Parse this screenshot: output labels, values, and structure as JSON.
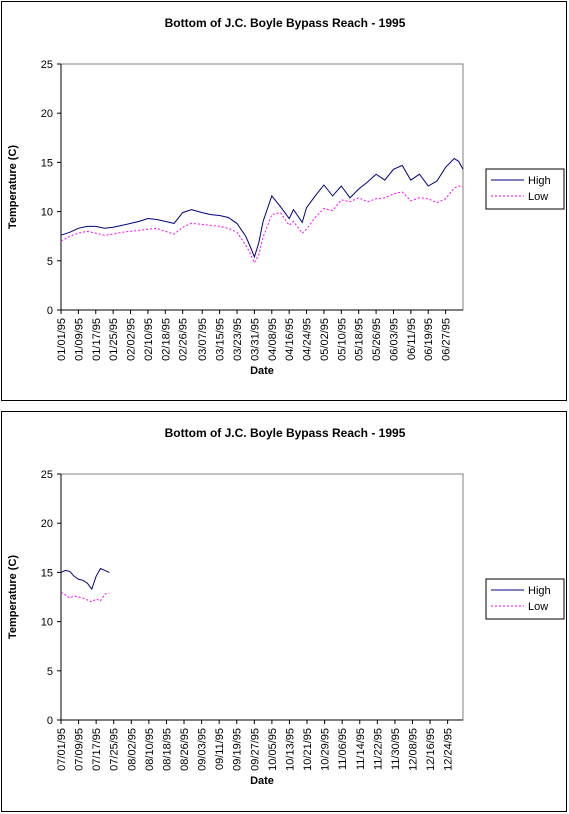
{
  "chart_data": [
    {
      "type": "line",
      "title": "Bottom of J.C. Boyle Bypass Reach - 1995",
      "xlabel": "Date",
      "ylabel": "Temperature (C)",
      "ylim": [
        0,
        25
      ],
      "yticks": [
        "0",
        "5",
        "10",
        "15",
        "20",
        "25"
      ],
      "xlim": [
        "01/01/95",
        "07/05/95"
      ],
      "xticks": [
        "01/01/95",
        "01/09/95",
        "01/17/95",
        "01/25/95",
        "02/02/95",
        "02/10/95",
        "02/18/95",
        "02/26/95",
        "03/07/95",
        "03/15/95",
        "03/23/95",
        "03/31/95",
        "04/08/95",
        "04/16/95",
        "04/24/95",
        "05/02/95",
        "05/10/95",
        "05/18/95",
        "05/26/95",
        "06/03/95",
        "06/11/95",
        "06/19/95",
        "06/27/95"
      ],
      "legend": "right",
      "grid": false,
      "series": [
        {
          "name": "High",
          "color": "#000080",
          "style": "solid",
          "points": [
            [
              "01/01/95",
              7.6
            ],
            [
              "01/05/95",
              7.9
            ],
            [
              "01/09/95",
              8.3
            ],
            [
              "01/13/95",
              8.5
            ],
            [
              "01/17/95",
              8.5
            ],
            [
              "01/21/95",
              8.3
            ],
            [
              "01/25/95",
              8.4
            ],
            [
              "01/29/95",
              8.6
            ],
            [
              "02/02/95",
              8.8
            ],
            [
              "02/06/95",
              9.0
            ],
            [
              "02/10/95",
              9.3
            ],
            [
              "02/14/95",
              9.2
            ],
            [
              "02/18/95",
              9.0
            ],
            [
              "02/22/95",
              8.8
            ],
            [
              "02/26/95",
              9.9
            ],
            [
              "03/02/95",
              10.2
            ],
            [
              "03/07/95",
              9.9
            ],
            [
              "03/11/95",
              9.7
            ],
            [
              "03/15/95",
              9.6
            ],
            [
              "03/19/95",
              9.4
            ],
            [
              "03/23/95",
              8.8
            ],
            [
              "03/27/95",
              7.5
            ],
            [
              "03/29/95",
              6.5
            ],
            [
              "03/31/95",
              5.4
            ],
            [
              "04/02/95",
              6.8
            ],
            [
              "04/04/95",
              9.0
            ],
            [
              "04/08/95",
              11.6
            ],
            [
              "04/12/95",
              10.5
            ],
            [
              "04/16/95",
              9.3
            ],
            [
              "04/18/95",
              10.2
            ],
            [
              "04/22/95",
              8.9
            ],
            [
              "04/24/95",
              10.4
            ],
            [
              "04/28/95",
              11.6
            ],
            [
              "05/02/95",
              12.7
            ],
            [
              "05/06/95",
              11.6
            ],
            [
              "05/10/95",
              12.6
            ],
            [
              "05/14/95",
              11.4
            ],
            [
              "05/18/95",
              12.3
            ],
            [
              "05/22/95",
              13.0
            ],
            [
              "05/26/95",
              13.8
            ],
            [
              "05/30/95",
              13.2
            ],
            [
              "06/03/95",
              14.3
            ],
            [
              "06/07/95",
              14.7
            ],
            [
              "06/11/95",
              13.2
            ],
            [
              "06/15/95",
              13.8
            ],
            [
              "06/19/95",
              12.6
            ],
            [
              "06/23/95",
              13.1
            ],
            [
              "06/27/95",
              14.5
            ],
            [
              "07/01/95",
              15.4
            ],
            [
              "07/03/95",
              15.1
            ],
            [
              "07/05/95",
              14.3
            ]
          ]
        },
        {
          "name": "Low",
          "color": "#ff00ff",
          "style": "dotted",
          "points": [
            [
              "01/01/95",
              7.0
            ],
            [
              "01/05/95",
              7.5
            ],
            [
              "01/09/95",
              7.8
            ],
            [
              "01/13/95",
              8.0
            ],
            [
              "01/17/95",
              7.8
            ],
            [
              "01/21/95",
              7.6
            ],
            [
              "01/25/95",
              7.7
            ],
            [
              "01/29/95",
              7.9
            ],
            [
              "02/02/95",
              8.0
            ],
            [
              "02/06/95",
              8.1
            ],
            [
              "02/10/95",
              8.2
            ],
            [
              "02/14/95",
              8.3
            ],
            [
              "02/18/95",
              8.0
            ],
            [
              "02/22/95",
              7.7
            ],
            [
              "02/26/95",
              8.4
            ],
            [
              "03/02/95",
              8.8
            ],
            [
              "03/07/95",
              8.7
            ],
            [
              "03/11/95",
              8.6
            ],
            [
              "03/15/95",
              8.5
            ],
            [
              "03/19/95",
              8.3
            ],
            [
              "03/23/95",
              7.9
            ],
            [
              "03/27/95",
              6.6
            ],
            [
              "03/29/95",
              5.8
            ],
            [
              "03/31/95",
              4.8
            ],
            [
              "04/02/95",
              5.6
            ],
            [
              "04/04/95",
              7.4
            ],
            [
              "04/08/95",
              9.7
            ],
            [
              "04/12/95",
              9.9
            ],
            [
              "04/16/95",
              8.6
            ],
            [
              "04/18/95",
              9.0
            ],
            [
              "04/22/95",
              7.8
            ],
            [
              "04/24/95",
              8.2
            ],
            [
              "04/28/95",
              9.4
            ],
            [
              "05/02/95",
              10.3
            ],
            [
              "05/06/95",
              10.1
            ],
            [
              "05/10/95",
              11.2
            ],
            [
              "05/14/95",
              11.0
            ],
            [
              "05/18/95",
              11.4
            ],
            [
              "05/22/95",
              11.0
            ],
            [
              "05/26/95",
              11.3
            ],
            [
              "05/30/95",
              11.4
            ],
            [
              "06/03/95",
              11.8
            ],
            [
              "06/07/95",
              12.0
            ],
            [
              "06/11/95",
              11.1
            ],
            [
              "06/15/95",
              11.4
            ],
            [
              "06/19/95",
              11.3
            ],
            [
              "06/23/95",
              10.9
            ],
            [
              "06/27/95",
              11.3
            ],
            [
              "07/01/95",
              12.4
            ],
            [
              "07/03/95",
              12.6
            ],
            [
              "07/05/95",
              12.5
            ]
          ]
        }
      ]
    },
    {
      "type": "line",
      "title": "Bottom of J.C. Boyle Bypass Reach - 1995",
      "xlabel": "Date",
      "ylabel": "Temperature (C)",
      "ylim": [
        0,
        25
      ],
      "yticks": [
        "0",
        "5",
        "10",
        "15",
        "20",
        "25"
      ],
      "xlim": [
        "07/01/95",
        "12/31/95"
      ],
      "xticks": [
        "07/01/95",
        "07/09/95",
        "07/17/95",
        "07/25/95",
        "08/02/95",
        "08/10/95",
        "08/18/95",
        "08/26/95",
        "09/03/95",
        "09/11/95",
        "09/19/95",
        "09/27/95",
        "10/05/95",
        "10/13/95",
        "10/21/95",
        "10/29/95",
        "11/06/95",
        "11/14/95",
        "11/22/95",
        "11/30/95",
        "12/08/95",
        "12/16/95",
        "12/24/95"
      ],
      "legend": "right",
      "grid": false,
      "series": [
        {
          "name": "High",
          "color": "#000080",
          "style": "solid",
          "points": [
            [
              "07/01/95",
              15.0
            ],
            [
              "07/03/95",
              15.2
            ],
            [
              "07/05/95",
              15.1
            ],
            [
              "07/07/95",
              14.6
            ],
            [
              "07/09/95",
              14.3
            ],
            [
              "07/11/95",
              14.2
            ],
            [
              "07/13/95",
              13.9
            ],
            [
              "07/15/95",
              13.3
            ],
            [
              "07/17/95",
              14.6
            ],
            [
              "07/19/95",
              15.4
            ],
            [
              "07/21/95",
              15.2
            ],
            [
              "07/23/95",
              15.0
            ]
          ]
        },
        {
          "name": "Low",
          "color": "#ff00ff",
          "style": "dotted",
          "points": [
            [
              "07/01/95",
              13.0
            ],
            [
              "07/03/95",
              12.7
            ],
            [
              "07/05/95",
              12.4
            ],
            [
              "07/07/95",
              12.6
            ],
            [
              "07/09/95",
              12.5
            ],
            [
              "07/11/95",
              12.4
            ],
            [
              "07/13/95",
              12.2
            ],
            [
              "07/15/95",
              12.0
            ],
            [
              "07/17/95",
              12.3
            ],
            [
              "07/19/95",
              12.1
            ],
            [
              "07/21/95",
              12.8
            ],
            [
              "07/23/95",
              12.9
            ]
          ]
        }
      ]
    }
  ]
}
